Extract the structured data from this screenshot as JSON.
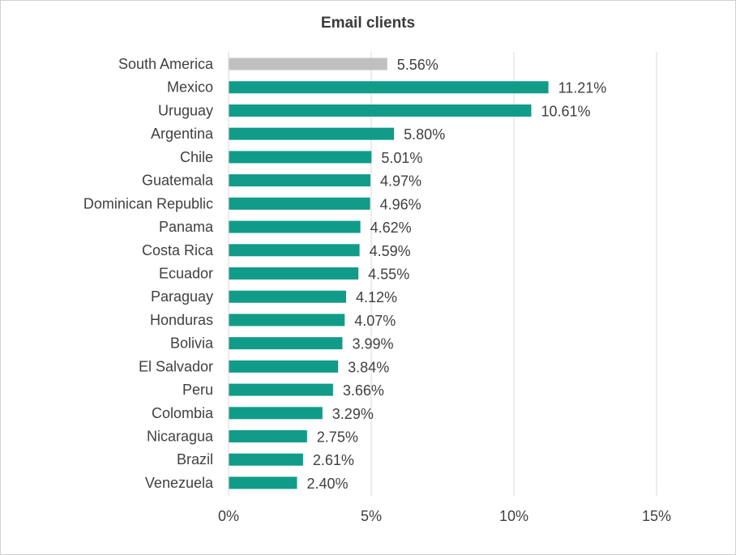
{
  "chart_data": {
    "type": "bar",
    "orientation": "horizontal",
    "title": "Email clients",
    "xlabel": "",
    "ylabel": "",
    "xlim": [
      0,
      15
    ],
    "x_ticks": [
      "0%",
      "5%",
      "10%",
      "15%"
    ],
    "x_tick_values": [
      0,
      5,
      10,
      15
    ],
    "grid": true,
    "categories": [
      "South America",
      "Mexico",
      "Uruguay",
      "Argentina",
      "Chile",
      "Guatemala",
      "Dominican Republic",
      "Panama",
      "Costa Rica",
      "Ecuador",
      "Paraguay",
      "Honduras",
      "Bolivia",
      "El Salvador",
      "Peru",
      "Colombia",
      "Nicaragua",
      "Brazil",
      "Venezuela"
    ],
    "values": [
      5.56,
      11.21,
      10.61,
      5.8,
      5.01,
      4.97,
      4.96,
      4.62,
      4.59,
      4.55,
      4.12,
      4.07,
      3.99,
      3.84,
      3.66,
      3.29,
      2.75,
      2.61,
      2.4
    ],
    "value_labels": [
      "5.56%",
      "11.21%",
      "10.61%",
      "5.80%",
      "5.01%",
      "4.97%",
      "4.96%",
      "4.62%",
      "4.59%",
      "4.55%",
      "4.12%",
      "4.07%",
      "3.99%",
      "3.84%",
      "3.66%",
      "3.29%",
      "2.75%",
      "2.61%",
      "2.40%"
    ],
    "colors": {
      "highlight": "#c0c0c0",
      "bar": "#109c88",
      "grid": "#d9d9d9"
    },
    "highlight_category": "South America"
  }
}
